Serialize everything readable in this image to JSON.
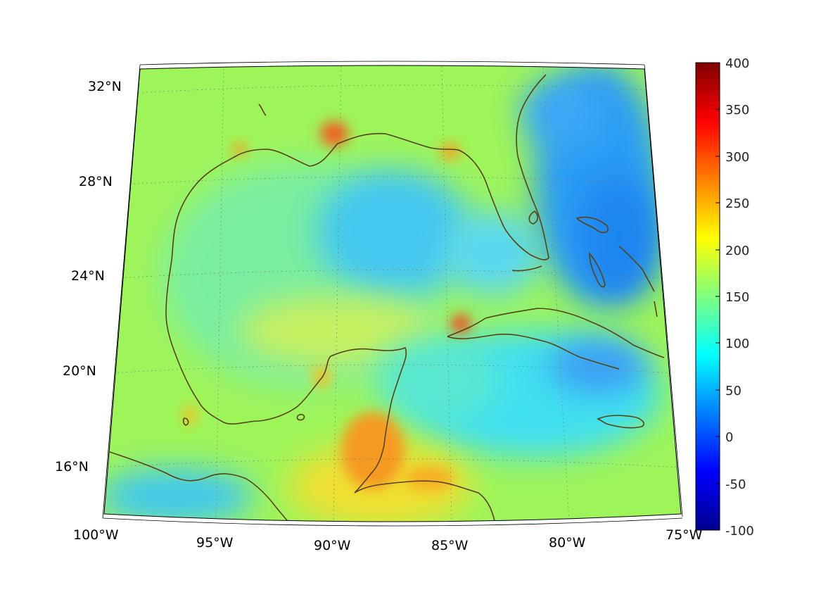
{
  "map": {
    "projection": "conic",
    "lat_range": [
      14,
      33
    ],
    "lon_range": [
      -100,
      -75
    ],
    "gridlines": true,
    "lat_labels": [
      "32°N",
      "28°N",
      "24°N",
      "20°N",
      "16°N"
    ],
    "lon_labels": [
      "100°W",
      "95°W",
      "90°W",
      "85°W",
      "80°W",
      "75°W"
    ],
    "coastline_color": "#5a4210"
  },
  "colorbar": {
    "colormap": "jet",
    "range": [
      -100,
      400
    ],
    "tick_labels": [
      "400",
      "350",
      "300",
      "250",
      "200",
      "150",
      "100",
      "50",
      "0",
      "-50",
      "-100"
    ]
  },
  "hotspots": [
    {
      "lon": -90.0,
      "lat": 29.7,
      "value": 320
    },
    {
      "lon": -84.2,
      "lat": 22.6,
      "value": 300
    },
    {
      "lon": -88.4,
      "lat": 17.1,
      "value": 260
    },
    {
      "lon": -86.6,
      "lat": 15.6,
      "value": 250
    },
    {
      "lon": -85.0,
      "lat": 29.4,
      "value": 240
    },
    {
      "lon": -94.2,
      "lat": 29.4,
      "value": 240
    },
    {
      "lon": -90.6,
      "lat": 20.0,
      "value": 220
    },
    {
      "lon": -96.5,
      "lat": 18.3,
      "value": 230
    }
  ],
  "lowspots": [
    {
      "lon": -86.8,
      "lat": 26.0,
      "value": 40
    },
    {
      "lon": -77.5,
      "lat": 28.0,
      "value": 20
    },
    {
      "lon": -76.5,
      "lat": 25.5,
      "value": 10
    },
    {
      "lon": -79.5,
      "lat": 31.0,
      "value": 30
    },
    {
      "lon": -80.0,
      "lat": 20.3,
      "value": 40
    },
    {
      "lon": -95.5,
      "lat": 15.0,
      "value": 40
    },
    {
      "lon": -81.0,
      "lat": 18.0,
      "value": 60
    }
  ]
}
